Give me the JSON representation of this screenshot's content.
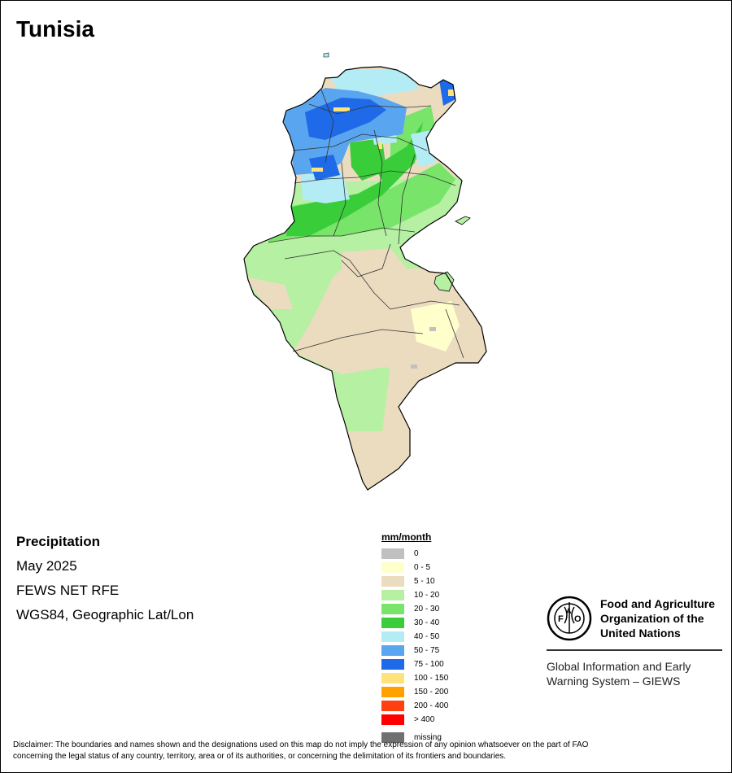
{
  "title": "Tunisia",
  "info": {
    "variable": "Precipitation",
    "period": "May 2025",
    "source": "FEWS NET RFE",
    "projection": "WGS84, Geographic Lat/Lon"
  },
  "legend": {
    "unit": "mm/month",
    "classes": [
      {
        "label": "0",
        "color": "#c0c0c0"
      },
      {
        "label": "0 - 5",
        "color": "#ffffcc"
      },
      {
        "label": "5 - 10",
        "color": "#ebdcc0"
      },
      {
        "label": "10 - 20",
        "color": "#b5f0a3"
      },
      {
        "label": "20 - 30",
        "color": "#78e56a"
      },
      {
        "label": "30 - 40",
        "color": "#3acd3a"
      },
      {
        "label": "40 - 50",
        "color": "#b4ecf6"
      },
      {
        "label": "50 - 75",
        "color": "#5aa5f0"
      },
      {
        "label": "75 - 100",
        "color": "#1e6ae8"
      },
      {
        "label": "100 - 150",
        "color": "#ffe27a"
      },
      {
        "label": "150 - 200",
        "color": "#ffa200"
      },
      {
        "label": "200 - 400",
        "color": "#ff4010"
      },
      {
        "label": "> 400",
        "color": "#ff0000"
      }
    ],
    "missing": {
      "label": "missing",
      "color": "#707070"
    }
  },
  "logo": {
    "org_line1": "Food and Agriculture",
    "org_line2": "Organization of the",
    "org_line3": "United Nations",
    "giews_line1": "Global Information and Early",
    "giews_line2": "Warning System – GIEWS",
    "emblem_text": "FAO",
    "emblem_motto_left": "FIAT",
    "emblem_motto_right": "PANIS"
  },
  "disclaimer": {
    "line1": "Disclaimer: The boundaries and names shown and the designations used on this map do not imply the expression of any opinion whatsoever on the part of FAO",
    "line2": "concerning the legal status of any country, territory, area or of its authorities, or concerning the delimitation of its frontiers and boundaries."
  }
}
